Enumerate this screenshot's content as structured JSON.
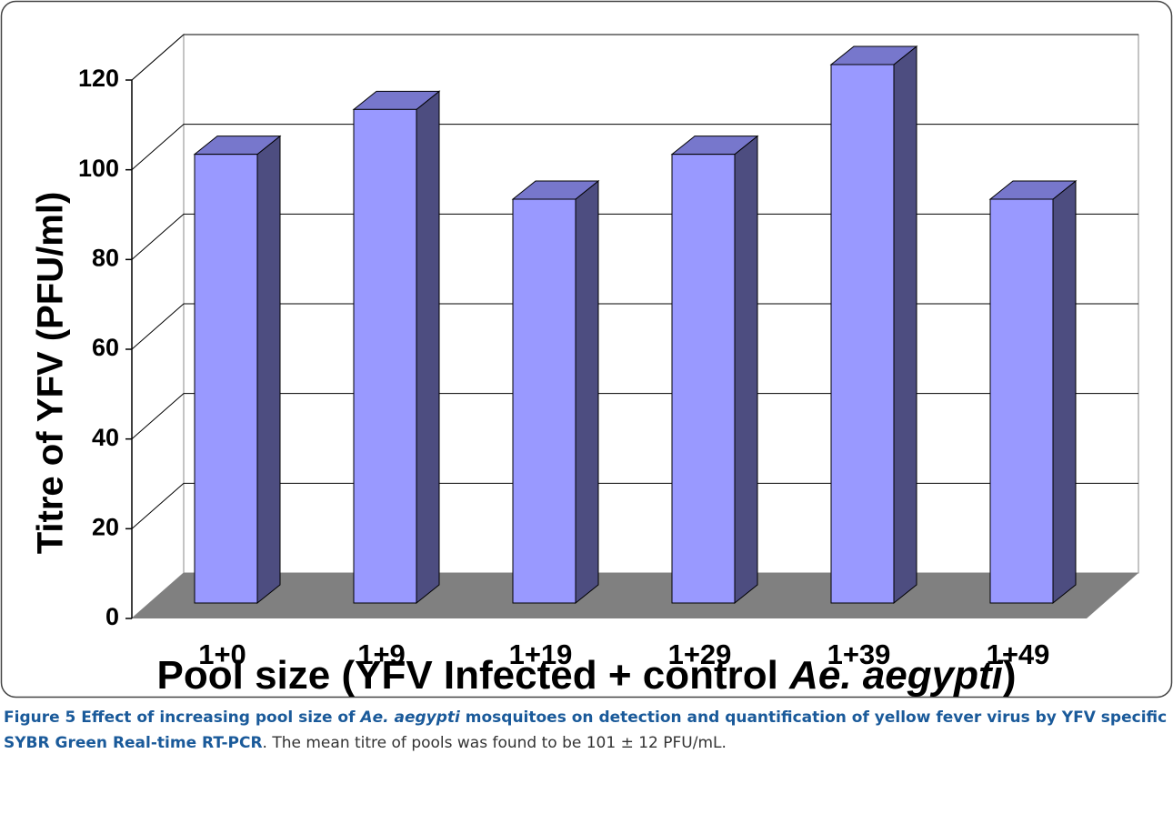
{
  "chart_data": {
    "type": "bar3d",
    "categories": [
      "1+0",
      "1+9",
      "1+19",
      "1+29",
      "1+39",
      "1+49"
    ],
    "values": [
      100,
      110,
      90,
      100,
      120,
      90
    ],
    "color": "#9999ff",
    "side_color": "#4d4d80",
    "top_color": "#7777cc",
    "floor_color": "#808080",
    "ylabel": "Titre of YFV (PFU/ml)",
    "xlabel": {
      "text": "Pool size (YFV Infected + control ",
      "italic": "Ae. aegypti",
      "end": ")"
    },
    "ylim": [
      0,
      120
    ],
    "yticks": [
      0,
      20,
      40,
      60,
      80,
      100,
      120
    ],
    "grid": true
  },
  "caption": {
    "label": "Figure 5",
    "title_parts": [
      " Effect of increasing pool size of ",
      "Ae. aegypti",
      " mosquitoes on detection and quantification of yellow fever virus by YFV specific SYBR Green Real-time RT-PCR"
    ],
    "text": ". The mean titre of pools was found to be 101 ± 12 PFU/mL."
  }
}
